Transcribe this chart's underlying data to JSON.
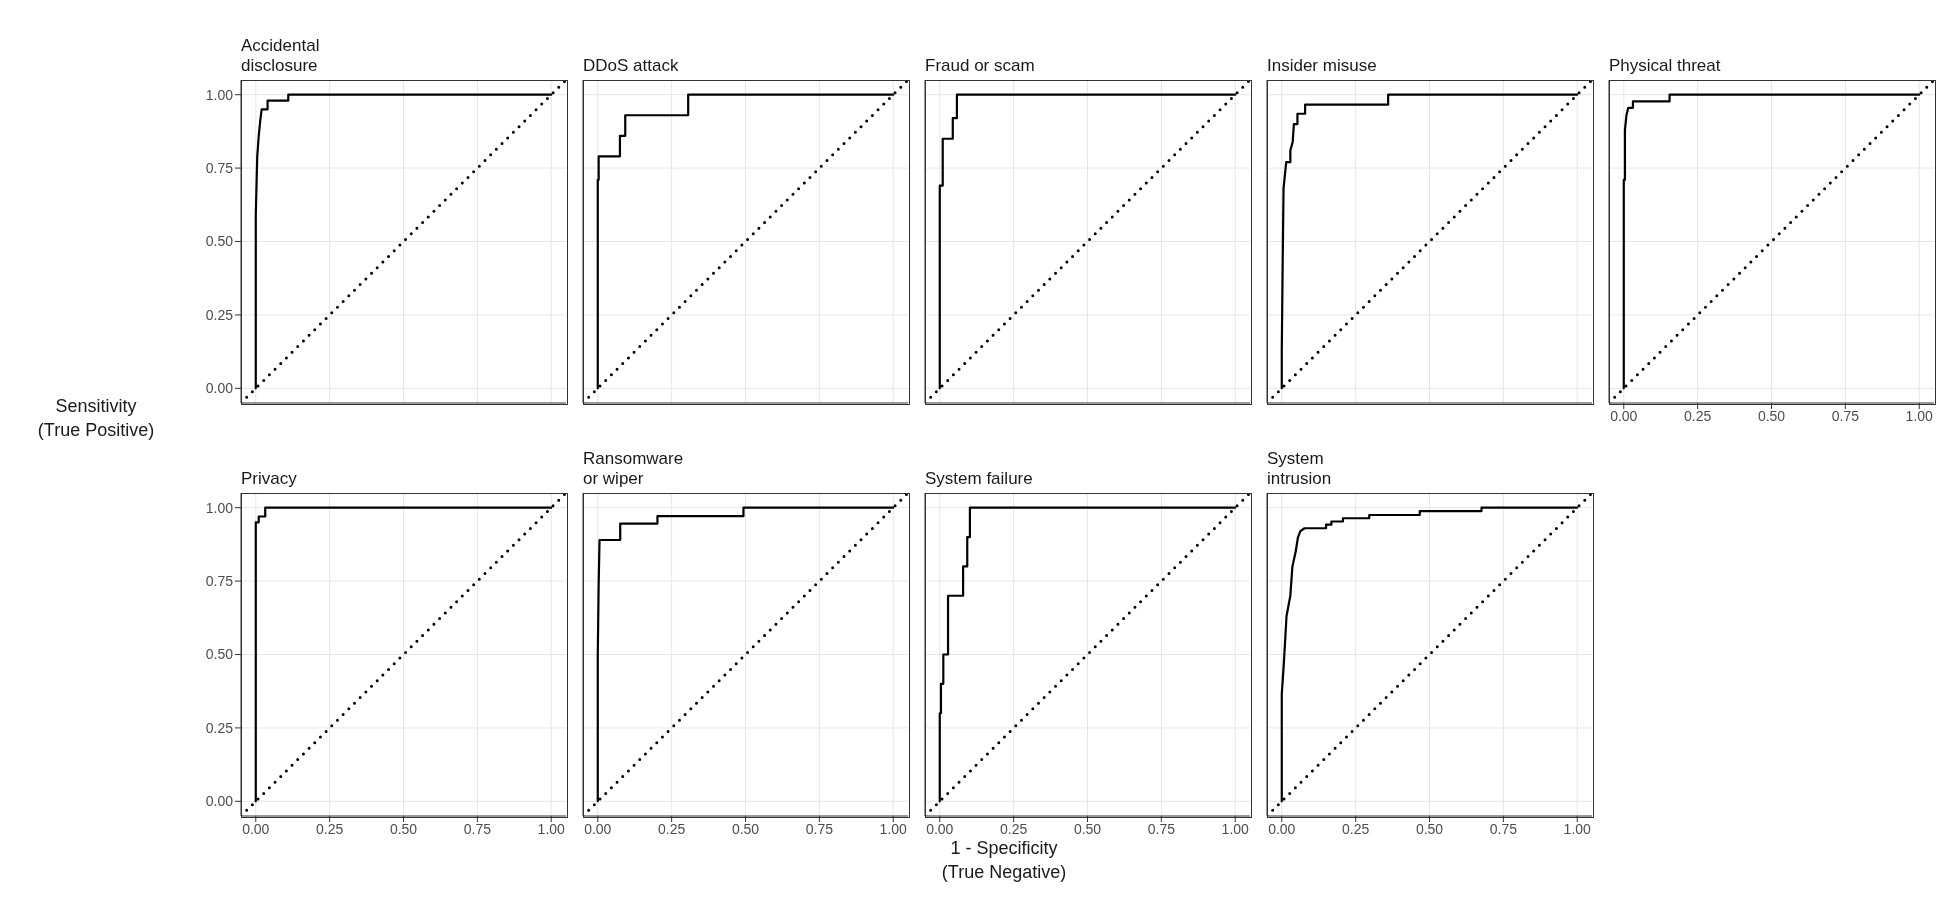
{
  "chart_data": [
    {
      "type": "line",
      "title": "Accidental\ndisclosure",
      "xlim": [
        -0.05,
        1.05
      ],
      "ylim": [
        -0.05,
        1.05
      ],
      "xticks": [
        0,
        0.25,
        0.5,
        0.75,
        1
      ],
      "yticks": [
        {
          "value": 0,
          "label": "0.00"
        },
        {
          "value": 0.25,
          "label": "0.25"
        },
        {
          "value": 0.5,
          "label": "0.50"
        },
        {
          "value": 0.75,
          "label": "0.75"
        },
        {
          "value": 1,
          "label": "1.00"
        }
      ],
      "grid": true,
      "tick_labels": "y",
      "series": [
        {
          "color": "#000000",
          "line_style": "solid",
          "x": [
            0,
            0,
            0.005,
            0.01,
            0.015,
            0.02,
            0.04,
            0.04,
            0.11,
            0.11,
            1
          ],
          "values": [
            0,
            0.59,
            0.79,
            0.86,
            0.91,
            0.95,
            0.95,
            0.98,
            0.98,
            1,
            1
          ]
        },
        {
          "color": "#000000",
          "line_style": "dotted",
          "x": [
            -0.05,
            1.05
          ],
          "values": [
            -0.05,
            1.05
          ]
        }
      ]
    },
    {
      "type": "line",
      "title": "DDoS attack",
      "xlim": [
        -0.05,
        1.05
      ],
      "ylim": [
        -0.05,
        1.05
      ],
      "xticks": [
        0,
        0.25,
        0.5,
        0.75,
        1
      ],
      "yticks": [
        0,
        0.25,
        0.5,
        0.75,
        1
      ],
      "grid": true,
      "tick_labels": false,
      "series": [
        {
          "color": "#000000",
          "line_style": "solid",
          "x": [
            0,
            0,
            0.003,
            0.003,
            0.075,
            0.075,
            0.093,
            0.093,
            0.306,
            0.306,
            1
          ],
          "values": [
            0,
            0.71,
            0.71,
            0.79,
            0.79,
            0.86,
            0.86,
            0.93,
            0.93,
            1,
            1
          ]
        },
        {
          "color": "#000000",
          "line_style": "dotted",
          "x": [
            -0.05,
            1.05
          ],
          "values": [
            -0.05,
            1.05
          ]
        }
      ]
    },
    {
      "type": "line",
      "title": "Fraud or scam",
      "xlim": [
        -0.05,
        1.05
      ],
      "ylim": [
        -0.05,
        1.05
      ],
      "xticks": [
        0,
        0.25,
        0.5,
        0.75,
        1
      ],
      "yticks": [
        0,
        0.25,
        0.5,
        0.75,
        1
      ],
      "grid": true,
      "tick_labels": false,
      "series": [
        {
          "color": "#000000",
          "line_style": "solid",
          "x": [
            0,
            0,
            0.01,
            0.01,
            0.044,
            0.044,
            0.058,
            0.058,
            1
          ],
          "values": [
            0,
            0.69,
            0.69,
            0.85,
            0.85,
            0.92,
            0.92,
            1,
            1
          ]
        },
        {
          "color": "#000000",
          "line_style": "dotted",
          "x": [
            -0.05,
            1.05
          ],
          "values": [
            -0.05,
            1.05
          ]
        }
      ]
    },
    {
      "type": "line",
      "title": "Insider misuse",
      "xlim": [
        -0.05,
        1.05
      ],
      "ylim": [
        -0.05,
        1.05
      ],
      "xticks": [
        0,
        0.25,
        0.5,
        0.75,
        1
      ],
      "yticks": [
        0,
        0.25,
        0.5,
        0.75,
        1
      ],
      "grid": true,
      "tick_labels": false,
      "series": [
        {
          "color": "#000000",
          "line_style": "solid",
          "x": [
            0,
            0,
            0.003,
            0.006,
            0.015,
            0.029,
            0.029,
            0.037,
            0.041,
            0.053,
            0.053,
            0.079,
            0.079,
            0.36,
            0.36,
            1
          ],
          "values": [
            0,
            0.13,
            0.42,
            0.68,
            0.77,
            0.77,
            0.81,
            0.84,
            0.9,
            0.9,
            0.935,
            0.935,
            0.966,
            0.966,
            1,
            1
          ]
        },
        {
          "color": "#000000",
          "line_style": "dotted",
          "x": [
            -0.05,
            1.05
          ],
          "values": [
            -0.05,
            1.05
          ]
        }
      ]
    },
    {
      "type": "line",
      "title": "Physical threat",
      "xlim": [
        -0.05,
        1.05
      ],
      "ylim": [
        -0.05,
        1.05
      ],
      "xticks": [
        {
          "value": 0,
          "label": "0.00"
        },
        {
          "value": 0.25,
          "label": "0.25"
        },
        {
          "value": 0.5,
          "label": "0.50"
        },
        {
          "value": 0.75,
          "label": "0.75"
        },
        {
          "value": 1,
          "label": "1.00"
        }
      ],
      "yticks": [
        0,
        0.25,
        0.5,
        0.75,
        1
      ],
      "grid": true,
      "tick_labels": "x",
      "series": [
        {
          "color": "#000000",
          "line_style": "solid",
          "x": [
            0,
            0,
            0.004,
            0.004,
            0.009,
            0.015,
            0.031,
            0.031,
            0.155,
            0.155,
            1
          ],
          "values": [
            0,
            0.71,
            0.71,
            0.88,
            0.93,
            0.955,
            0.955,
            0.977,
            0.977,
            1,
            1
          ]
        },
        {
          "color": "#000000",
          "line_style": "dotted",
          "x": [
            -0.05,
            1.05
          ],
          "values": [
            -0.05,
            1.05
          ]
        }
      ]
    },
    {
      "type": "line",
      "title": "Privacy",
      "ylabel": "Sensitivity\n(True Positive)",
      "xlim": [
        -0.05,
        1.05
      ],
      "ylim": [
        -0.05,
        1.05
      ],
      "xticks": [
        {
          "value": 0,
          "label": "0.00"
        },
        {
          "value": 0.25,
          "label": "0.25"
        },
        {
          "value": 0.5,
          "label": "0.50"
        },
        {
          "value": 0.75,
          "label": "0.75"
        },
        {
          "value": 1,
          "label": "1.00"
        }
      ],
      "yticks": [
        {
          "value": 0,
          "label": "0.00"
        },
        {
          "value": 0.25,
          "label": "0.25"
        },
        {
          "value": 0.5,
          "label": "0.50"
        },
        {
          "value": 0.75,
          "label": "0.75"
        },
        {
          "value": 1,
          "label": "1.00"
        }
      ],
      "grid": true,
      "series": [
        {
          "color": "#000000",
          "line_style": "solid",
          "x": [
            0,
            0,
            0.01,
            0.01,
            0.032,
            0.032,
            1
          ],
          "values": [
            0,
            0.95,
            0.95,
            0.97,
            0.97,
            1,
            1
          ]
        },
        {
          "color": "#000000",
          "line_style": "dotted",
          "x": [
            -0.05,
            1.05
          ],
          "values": [
            -0.05,
            1.05
          ]
        }
      ]
    },
    {
      "type": "line",
      "title": "Ransomware\nor wiper",
      "xlim": [
        -0.05,
        1.05
      ],
      "ylim": [
        -0.05,
        1.05
      ],
      "xticks": [
        {
          "value": 0,
          "label": "0.00"
        },
        {
          "value": 0.25,
          "label": "0.25"
        },
        {
          "value": 0.5,
          "label": "0.50"
        },
        {
          "value": 0.75,
          "label": "0.75"
        },
        {
          "value": 1,
          "label": "1.00"
        }
      ],
      "yticks": [
        0,
        0.25,
        0.5,
        0.75,
        1
      ],
      "grid": true,
      "tick_labels": "x",
      "series": [
        {
          "color": "#000000",
          "line_style": "solid",
          "x": [
            0,
            0,
            0.003,
            0.006,
            0.076,
            0.076,
            0.202,
            0.202,
            0.493,
            0.493,
            1
          ],
          "values": [
            0,
            0.5,
            0.74,
            0.89,
            0.89,
            0.946,
            0.946,
            0.971,
            0.971,
            1,
            1
          ]
        },
        {
          "color": "#000000",
          "line_style": "dotted",
          "x": [
            -0.05,
            1.05
          ],
          "values": [
            -0.05,
            1.05
          ]
        }
      ]
    },
    {
      "type": "line",
      "title": "System failure",
      "xlabel": "1 - Specificity\n(True Negative)",
      "xlim": [
        -0.05,
        1.05
      ],
      "ylim": [
        -0.05,
        1.05
      ],
      "xticks": [
        {
          "value": 0,
          "label": "0.00"
        },
        {
          "value": 0.25,
          "label": "0.25"
        },
        {
          "value": 0.5,
          "label": "0.50"
        },
        {
          "value": 0.75,
          "label": "0.75"
        },
        {
          "value": 1,
          "label": "1.00"
        }
      ],
      "yticks": [
        0,
        0.25,
        0.5,
        0.75,
        1
      ],
      "grid": true,
      "tick_labels": "x",
      "series": [
        {
          "color": "#000000",
          "line_style": "solid",
          "x": [
            0,
            0,
            0.004,
            0.004,
            0.012,
            0.012,
            0.028,
            0.028,
            0.079,
            0.079,
            0.093,
            0.093,
            0.102,
            0.102,
            1
          ],
          "values": [
            0,
            0.3,
            0.3,
            0.4,
            0.4,
            0.5,
            0.5,
            0.7,
            0.7,
            0.8,
            0.8,
            0.9,
            0.9,
            1,
            1
          ]
        },
        {
          "color": "#000000",
          "line_style": "dotted",
          "x": [
            -0.05,
            1.05
          ],
          "values": [
            -0.05,
            1.05
          ]
        }
      ]
    },
    {
      "type": "line",
      "title": "System\nintrusion",
      "xlim": [
        -0.05,
        1.05
      ],
      "ylim": [
        -0.05,
        1.05
      ],
      "xticks": [
        {
          "value": 0,
          "label": "0.00"
        },
        {
          "value": 0.25,
          "label": "0.25"
        },
        {
          "value": 0.5,
          "label": "0.50"
        },
        {
          "value": 0.75,
          "label": "0.75"
        },
        {
          "value": 1,
          "label": "1.00"
        }
      ],
      "yticks": [
        0,
        0.25,
        0.5,
        0.75,
        1
      ],
      "grid": true,
      "tick_labels": "x",
      "series": [
        {
          "color": "#000000",
          "line_style": "solid",
          "x": [
            0,
            0,
            0.007,
            0.016,
            0.029,
            0.036,
            0.047,
            0.055,
            0.063,
            0.077,
            0.15,
            0.15,
            0.168,
            0.168,
            0.207,
            0.207,
            0.296,
            0.296,
            0.467,
            0.467,
            0.676,
            0.676,
            1
          ],
          "values": [
            0,
            0.365,
            0.47,
            0.63,
            0.7,
            0.8,
            0.85,
            0.9,
            0.92,
            0.93,
            0.93,
            0.942,
            0.942,
            0.953,
            0.953,
            0.964,
            0.964,
            0.975,
            0.975,
            0.988,
            0.988,
            1,
            1
          ]
        },
        {
          "color": "#000000",
          "line_style": "dotted",
          "x": [
            -0.05,
            1.05
          ],
          "values": [
            -0.05,
            1.05
          ]
        }
      ]
    }
  ]
}
